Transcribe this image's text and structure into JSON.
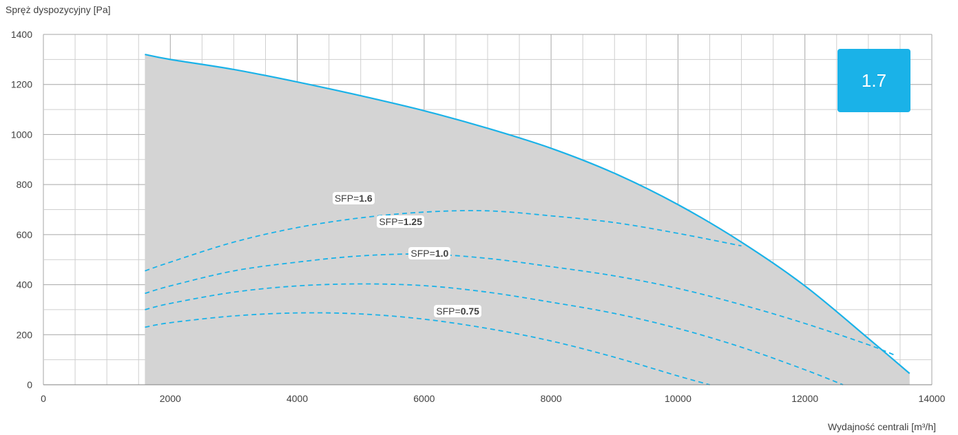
{
  "chart_data": {
    "type": "line",
    "ylabel": "Spręż dyspozycyjny [Pa]",
    "xlabel": "Wydajność centrali [m³/h]",
    "xlim": [
      0,
      14000
    ],
    "ylim": [
      0,
      1400
    ],
    "x_ticks": [
      0,
      2000,
      4000,
      6000,
      8000,
      10000,
      12000,
      14000
    ],
    "y_ticks": [
      0,
      200,
      400,
      600,
      800,
      1000,
      1200,
      1400
    ],
    "grid": true,
    "badge": "1.7",
    "envelope": {
      "x": [
        1600,
        2000,
        3000,
        4000,
        5000,
        6000,
        7000,
        8000,
        9000,
        10000,
        11000,
        12000,
        13000,
        13650
      ],
      "y": [
        1320,
        1300,
        1260,
        1210,
        1155,
        1095,
        1025,
        945,
        845,
        720,
        570,
        395,
        185,
        45
      ]
    },
    "sfp_curves": [
      {
        "prefix": "SFP=",
        "value": "1.6",
        "x": [
          1600,
          2000,
          3000,
          4000,
          5000,
          6000,
          7000,
          8000,
          9000,
          10000,
          11000
        ],
        "y": [
          455,
          490,
          570,
          628,
          667,
          690,
          695,
          675,
          648,
          605,
          555
        ]
      },
      {
        "prefix": "SFP=",
        "value": "1.25",
        "x": [
          1600,
          2000,
          3000,
          4000,
          5000,
          6000,
          7000,
          8000,
          9000,
          10000,
          11000,
          12000,
          13000,
          13400
        ],
        "y": [
          365,
          395,
          455,
          490,
          515,
          522,
          505,
          472,
          435,
          385,
          320,
          245,
          160,
          120
        ]
      },
      {
        "prefix": "SFP=",
        "value": "1.0",
        "x": [
          1600,
          2000,
          3000,
          4000,
          5000,
          6000,
          7000,
          8000,
          9000,
          10000,
          11000,
          12000,
          12600
        ],
        "y": [
          300,
          325,
          370,
          395,
          403,
          396,
          370,
          330,
          285,
          225,
          150,
          60,
          0
        ]
      },
      {
        "prefix": "SFP=",
        "value": "0.75",
        "x": [
          1600,
          2000,
          3000,
          4000,
          5000,
          6000,
          7000,
          8000,
          9000,
          10000,
          10500
        ],
        "y": [
          230,
          248,
          275,
          287,
          283,
          262,
          225,
          175,
          110,
          35,
          0
        ]
      }
    ],
    "colors": {
      "curve": "#1ab2e8",
      "fill": "#d4d4d4",
      "grid": "#cfcfcf",
      "grid_major": "#a6a6a6",
      "axis_text": "#404040"
    }
  }
}
